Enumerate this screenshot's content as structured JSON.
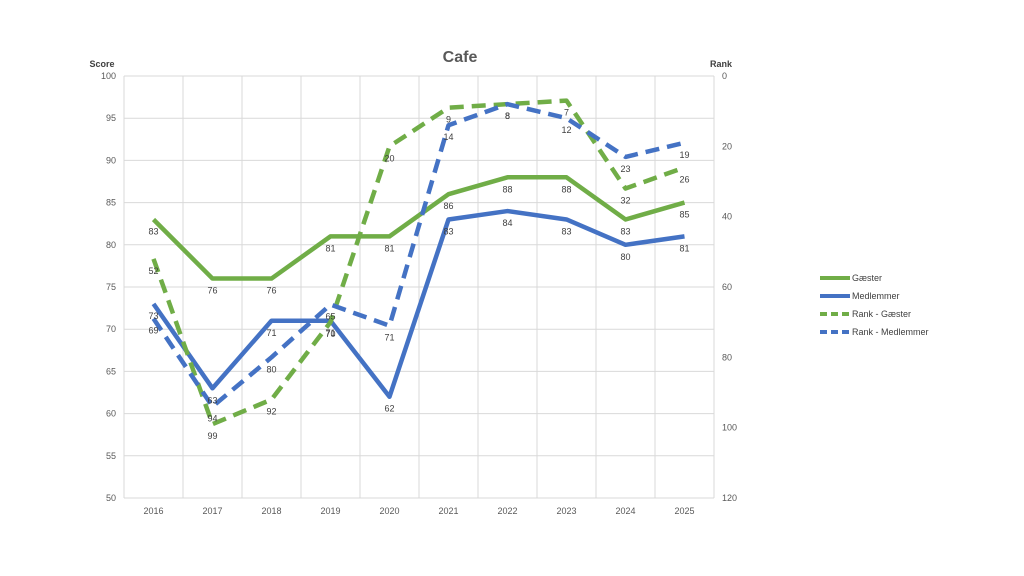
{
  "chart_data": {
    "type": "line",
    "title": "Cafe",
    "ylabel": "Score",
    "y2label": "Rank",
    "categories": [
      "2016",
      "2017",
      "2018",
      "2019",
      "2020",
      "2021",
      "2022",
      "2023",
      "2024",
      "2025"
    ],
    "ylim": [
      50,
      100
    ],
    "y2lim": [
      0,
      120
    ],
    "y2_reversed": true,
    "yticks": [
      50,
      55,
      60,
      65,
      70,
      75,
      80,
      85,
      90,
      95,
      100
    ],
    "y2ticks": [
      0,
      20,
      40,
      60,
      80,
      100,
      120
    ],
    "grid": true,
    "legend_position": "right",
    "series": [
      {
        "name": "Gæster",
        "axis": "left",
        "style": "solid",
        "color": "#70ad47",
        "values": [
          83,
          76,
          76,
          81,
          81,
          86,
          88,
          88,
          83,
          85
        ]
      },
      {
        "name": "Medlemmer",
        "axis": "left",
        "style": "solid",
        "color": "#4472c4",
        "values": [
          73,
          63,
          71,
          71,
          62,
          83,
          84,
          83,
          80,
          81
        ]
      },
      {
        "name": "Rank - Gæster",
        "axis": "right",
        "style": "dashed",
        "color": "#70ad47",
        "values": [
          52,
          99,
          92,
          70,
          20,
          9,
          8,
          7,
          32,
          26
        ]
      },
      {
        "name": "Rank - Medlemmer",
        "axis": "right",
        "style": "dashed",
        "color": "#4472c4",
        "values": [
          69,
          94,
          80,
          65,
          71,
          14,
          8,
          12,
          23,
          19
        ]
      }
    ]
  }
}
